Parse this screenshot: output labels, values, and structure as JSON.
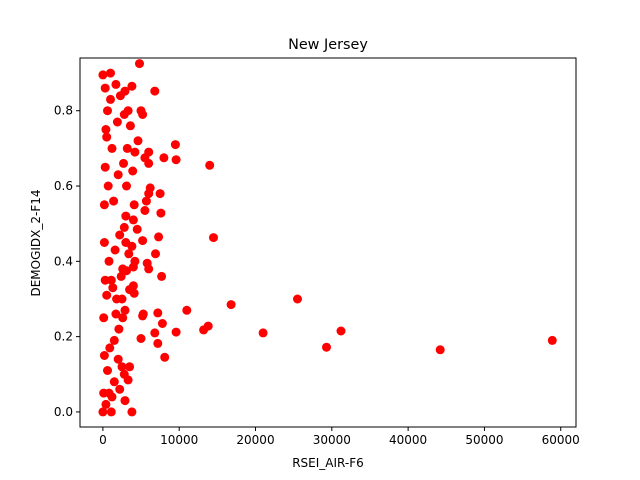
{
  "chart_data": {
    "type": "scatter",
    "title": "New Jersey",
    "xlabel": "RSEI_AIR-F6",
    "ylabel": "DEMOGIDX_2-F14",
    "xlim": [
      -3000,
      62000
    ],
    "ylim": [
      -0.04,
      0.94
    ],
    "xticks": [
      0,
      10000,
      20000,
      30000,
      40000,
      50000,
      60000
    ],
    "xtick_labels": [
      "0",
      "10000",
      "20000",
      "30000",
      "40000",
      "50000",
      "60000"
    ],
    "yticks": [
      0.0,
      0.2,
      0.4,
      0.6,
      0.8
    ],
    "ytick_labels": [
      "0.0",
      "0.2",
      "0.4",
      "0.6",
      "0.8"
    ],
    "grid": false,
    "legend": "none",
    "marker_color": "#ff0000",
    "series": [
      {
        "points": [
          [
            0,
            0.895
          ],
          [
            1000,
            0.9
          ],
          [
            4800,
            0.925
          ],
          [
            6800,
            0.852
          ],
          [
            3800,
            0.865
          ],
          [
            2900,
            0.852
          ],
          [
            3300,
            0.8
          ],
          [
            5000,
            0.8
          ],
          [
            5200,
            0.79
          ],
          [
            9500,
            0.71
          ],
          [
            8000,
            0.675
          ],
          [
            9600,
            0.67
          ],
          [
            6000,
            0.66
          ],
          [
            6000,
            0.69
          ],
          [
            14000,
            0.655
          ],
          [
            5500,
            0.675
          ],
          [
            3600,
            0.76
          ],
          [
            4600,
            0.72
          ],
          [
            4200,
            0.69
          ],
          [
            3900,
            0.64
          ],
          [
            6200,
            0.595
          ],
          [
            6000,
            0.58
          ],
          [
            5700,
            0.56
          ],
          [
            7500,
            0.58
          ],
          [
            4100,
            0.55
          ],
          [
            5500,
            0.535
          ],
          [
            7600,
            0.528
          ],
          [
            4000,
            0.51
          ],
          [
            2800,
            0.49
          ],
          [
            4500,
            0.485
          ],
          [
            7300,
            0.465
          ],
          [
            14500,
            0.463
          ],
          [
            5200,
            0.455
          ],
          [
            3800,
            0.44
          ],
          [
            6900,
            0.42
          ],
          [
            4200,
            0.4
          ],
          [
            5800,
            0.395
          ],
          [
            4000,
            0.385
          ],
          [
            6000,
            0.38
          ],
          [
            3100,
            0.375
          ],
          [
            7700,
            0.36
          ],
          [
            4000,
            0.335
          ],
          [
            3500,
            0.325
          ],
          [
            4100,
            0.315
          ],
          [
            2500,
            0.3
          ],
          [
            5300,
            0.26
          ],
          [
            5200,
            0.255
          ],
          [
            7200,
            0.263
          ],
          [
            11000,
            0.27
          ],
          [
            16800,
            0.285
          ],
          [
            25500,
            0.3
          ],
          [
            31200,
            0.215
          ],
          [
            21000,
            0.21
          ],
          [
            13800,
            0.228
          ],
          [
            13200,
            0.218
          ],
          [
            9600,
            0.212
          ],
          [
            6800,
            0.21
          ],
          [
            7800,
            0.235
          ],
          [
            5000,
            0.195
          ],
          [
            7200,
            0.182
          ],
          [
            8100,
            0.145
          ],
          [
            29300,
            0.172
          ],
          [
            44200,
            0.165
          ],
          [
            58900,
            0.19
          ],
          [
            3500,
            0.12
          ],
          [
            2800,
            0.1
          ],
          [
            3300,
            0.085
          ],
          [
            2200,
            0.06
          ],
          [
            1200,
            0.04
          ],
          [
            2900,
            0.03
          ],
          [
            3800,
            0.0
          ],
          [
            1100,
            0.0
          ],
          [
            0,
            0.0
          ],
          [
            400,
            0.02
          ],
          [
            600,
            0.11
          ],
          [
            900,
            0.17
          ],
          [
            1500,
            0.19
          ],
          [
            2100,
            0.22
          ],
          [
            2600,
            0.25
          ],
          [
            2900,
            0.27
          ],
          [
            1800,
            0.3
          ],
          [
            1300,
            0.33
          ],
          [
            2400,
            0.36
          ],
          [
            800,
            0.4
          ],
          [
            1600,
            0.43
          ],
          [
            2200,
            0.47
          ],
          [
            3000,
            0.52
          ],
          [
            1400,
            0.56
          ],
          [
            700,
            0.6
          ],
          [
            2000,
            0.63
          ],
          [
            2700,
            0.66
          ],
          [
            1200,
            0.7
          ],
          [
            500,
            0.73
          ],
          [
            1900,
            0.77
          ],
          [
            2800,
            0.79
          ],
          [
            1000,
            0.83
          ],
          [
            300,
            0.86
          ],
          [
            1700,
            0.87
          ],
          [
            2300,
            0.84
          ],
          [
            600,
            0.8
          ],
          [
            3200,
            0.7
          ],
          [
            3100,
            0.6
          ],
          [
            3000,
            0.45
          ],
          [
            3400,
            0.42
          ],
          [
            2600,
            0.38
          ],
          [
            1100,
            0.35
          ],
          [
            500,
            0.31
          ],
          [
            1700,
            0.26
          ],
          [
            2000,
            0.14
          ],
          [
            1500,
            0.08
          ],
          [
            800,
            0.05
          ],
          [
            2500,
            0.12
          ],
          [
            200,
            0.55
          ],
          [
            300,
            0.65
          ],
          [
            400,
            0.75
          ],
          [
            200,
            0.45
          ],
          [
            300,
            0.35
          ],
          [
            100,
            0.25
          ],
          [
            200,
            0.15
          ],
          [
            100,
            0.05
          ]
        ]
      }
    ]
  }
}
